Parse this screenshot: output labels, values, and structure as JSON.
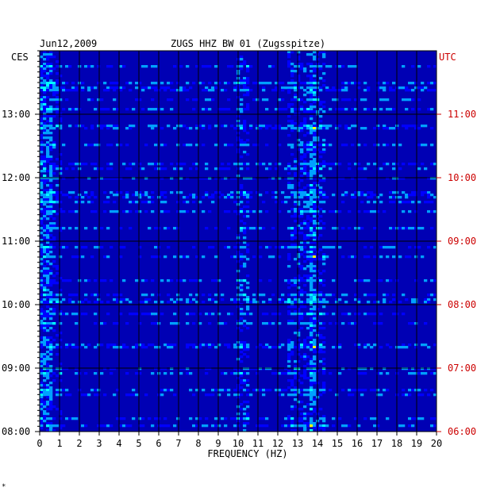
{
  "chart_data": {
    "type": "heatmap",
    "date": "Jun12,2009",
    "title": "ZUGS HHZ BW 01 (Zugsspitze)",
    "left_axis_label": "CES",
    "right_axis_label": "UTC",
    "xlabel": "FREQUENCY (HZ)",
    "xlim": [
      0,
      20
    ],
    "x_ticks": [
      "0",
      "1",
      "2",
      "3",
      "4",
      "5",
      "6",
      "7",
      "8",
      "9",
      "10",
      "11",
      "12",
      "13",
      "14",
      "15",
      "16",
      "17",
      "18",
      "19",
      "20"
    ],
    "y_ticks_left": [
      "13:00",
      "12:00",
      "11:00",
      "10:00",
      "09:00",
      "08:00"
    ],
    "y_ticks_right": [
      "11:00",
      "10:00",
      "09:00",
      "08:00",
      "07:00",
      "06:00"
    ],
    "grid": true,
    "colors": {
      "background": "#0000b4",
      "axis": "#000000",
      "utc": "#cc0000"
    },
    "colormap": [
      "#00008c",
      "#0000ff",
      "#00a0ff",
      "#00ffff",
      "#ffff00",
      "#ff8000",
      "#ff0000"
    ]
  },
  "footer_mark": "*"
}
